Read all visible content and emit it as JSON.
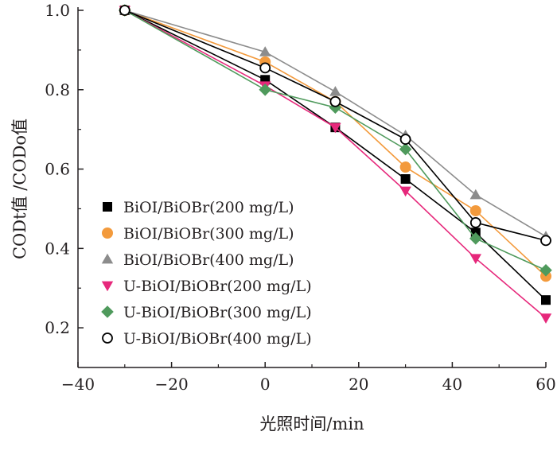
{
  "chart_data": {
    "type": "line",
    "xlabel": "光照时间/min",
    "ylabel": "CODt值 /CODo值",
    "xlim": [
      -40,
      60
    ],
    "ylim": [
      0.1,
      1.0
    ],
    "xticks": [
      -40,
      -20,
      0,
      20,
      40,
      60
    ],
    "yticks": [
      0.2,
      0.4,
      0.6,
      0.8,
      1.0
    ],
    "xtick_labels": [
      "−40",
      "−20",
      "0",
      "20",
      "40",
      "60"
    ],
    "ytick_labels": [
      "0.2",
      "0.4",
      "0.6",
      "0.8",
      "1.0"
    ],
    "grid": false,
    "legend_position": "bottom-left",
    "x": [
      -30,
      0,
      15,
      30,
      45,
      60
    ],
    "series": [
      {
        "name": "BiOI/BiOBr(200 mg/L)",
        "marker": "square",
        "color": "#000000",
        "values": [
          1.0,
          0.825,
          0.705,
          0.575,
          0.44,
          0.27
        ]
      },
      {
        "name": "BiOI/BiOBr(300 mg/L)",
        "marker": "circle",
        "color": "#f39a3c",
        "values": [
          1.0,
          0.87,
          0.77,
          0.605,
          0.495,
          0.33
        ]
      },
      {
        "name": "BiOI/BiOBr(400 mg/L)",
        "marker": "triangle-up",
        "color": "#8c8c8c",
        "values": [
          1.0,
          0.895,
          0.795,
          0.685,
          0.535,
          0.43
        ]
      },
      {
        "name": "U-BiOI/BiOBr(200 mg/L)",
        "marker": "triangle-down",
        "color": "#e6287b",
        "values": [
          1.0,
          0.81,
          0.705,
          0.545,
          0.375,
          0.225
        ]
      },
      {
        "name": "U-BiOI/BiOBr(300 mg/L)",
        "marker": "diamond",
        "color": "#4f9a5c",
        "values": [
          1.0,
          0.8,
          0.755,
          0.65,
          0.425,
          0.345
        ]
      },
      {
        "name": "U-BiOI/BiOBr(400 mg/L)",
        "marker": "open-circle",
        "color": "#000000",
        "values": [
          1.0,
          0.855,
          0.77,
          0.675,
          0.465,
          0.42
        ]
      }
    ]
  }
}
